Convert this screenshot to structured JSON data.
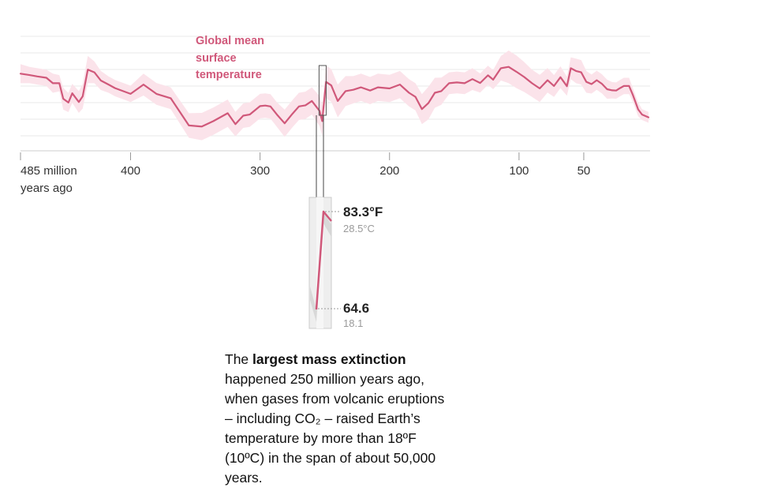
{
  "chart_data": {
    "type": "line",
    "xlabel": "",
    "ylabel": "",
    "series_label_lines": [
      "Global mean",
      "surface",
      "temperature"
    ],
    "x_ticks": [
      {
        "value": 485,
        "lines": [
          "485 million",
          "years ago"
        ]
      },
      {
        "value": 400,
        "lines": [
          "400"
        ]
      },
      {
        "value": 300,
        "lines": [
          "300"
        ]
      },
      {
        "value": 200,
        "lines": [
          "200"
        ]
      },
      {
        "value": 100,
        "lines": [
          "100"
        ]
      },
      {
        "value": 50,
        "lines": [
          "50"
        ]
      }
    ],
    "xlim": [
      485,
      0
    ],
    "ylim_f": [
      54,
      96
    ],
    "grid": true,
    "colors": {
      "line": "#d0587a",
      "band": "#fbe3ea",
      "grid": "#e9e9e9",
      "axis": "#cccccc"
    },
    "x": [
      485,
      478,
      472,
      465,
      460,
      455,
      452,
      448,
      445,
      440,
      437,
      433,
      428,
      423,
      417,
      412,
      400,
      390,
      380,
      369,
      355,
      345,
      336,
      325,
      319,
      313,
      308,
      300,
      296,
      292,
      287,
      281,
      275,
      270,
      265,
      260,
      254,
      252,
      251,
      249,
      245,
      240,
      234,
      228,
      222,
      215,
      209,
      200,
      192,
      185,
      180,
      175,
      170,
      165,
      160,
      154,
      148,
      142,
      136,
      130,
      124,
      120,
      114,
      108,
      102,
      96,
      90,
      84,
      78,
      73,
      68,
      63,
      60,
      56,
      52,
      48,
      44,
      40,
      36,
      32,
      28,
      25,
      22,
      19,
      15,
      12,
      8,
      5,
      0
    ],
    "y": [
      82,
      81.5,
      81,
      80.5,
      78.5,
      78.5,
      72.8,
      71.4,
      74.8,
      71.6,
      73.7,
      83.5,
      82.5,
      79.5,
      78,
      76.7,
      74.6,
      78,
      74.6,
      73,
      63,
      62.6,
      64.6,
      67.5,
      63.5,
      66.6,
      67,
      70.1,
      70.3,
      70,
      67,
      63.8,
      67.3,
      70,
      70.4,
      72,
      68.3,
      64.6,
      69.5,
      79,
      77.7,
      72,
      75.6,
      76.1,
      77,
      75.8,
      77,
      76.6,
      78,
      75,
      73.5,
      69,
      71.2,
      75,
      75.6,
      78.5,
      78.8,
      78.5,
      80,
      78.6,
      81.4,
      79.8,
      84,
      84.5,
      82.7,
      80.8,
      78.5,
      76.6,
      79.6,
      77.5,
      80.7,
      77.4,
      84,
      83,
      82.5,
      79,
      78.2,
      79.6,
      78.3,
      76.3,
      75.9,
      75.8,
      76.7,
      77.5,
      77.5,
      74.1,
      68.9,
      67,
      66
    ],
    "band_halfwidth_f": [
      3.5,
      3,
      3,
      3,
      3.5,
      3,
      4,
      3.5,
      3.5,
      4,
      4.5,
      5,
      4,
      3.5,
      3,
      3,
      3,
      4,
      4,
      4,
      4.5,
      5,
      5,
      5,
      4.5,
      4.5,
      4.5,
      4.5,
      4.5,
      4.5,
      4.5,
      5,
      5,
      5,
      5,
      5,
      5.5,
      5.5,
      5.5,
      6,
      6,
      6,
      5.5,
      5,
      5,
      5,
      5,
      5,
      5,
      5,
      5,
      5.5,
      6,
      5.5,
      5,
      4,
      4,
      4,
      4,
      3.5,
      3.5,
      3.5,
      4.5,
      6,
      6,
      5.5,
      5,
      5,
      4.5,
      4,
      4,
      3.5,
      4,
      4.5,
      4.5,
      4,
      3.5,
      3.5,
      3.5,
      3.5,
      3,
      3,
      3,
      3,
      3,
      2.5,
      2.5,
      2,
      2
    ],
    "zoom": {
      "from_year": 252,
      "to_year": 251,
      "low": {
        "f": "64.6",
        "c": "18.1"
      },
      "high": {
        "f": "83.3°F",
        "c": "28.5°C"
      }
    }
  },
  "annotation": {
    "pre": "The ",
    "bold": "largest mass extinction",
    "post": " happened 250 million years ago, when gases from volcanic eruptions – including CO₂ – raised Earth’s temperature by more than 18ºF (10ºC) in the span of about 50,000 years."
  }
}
